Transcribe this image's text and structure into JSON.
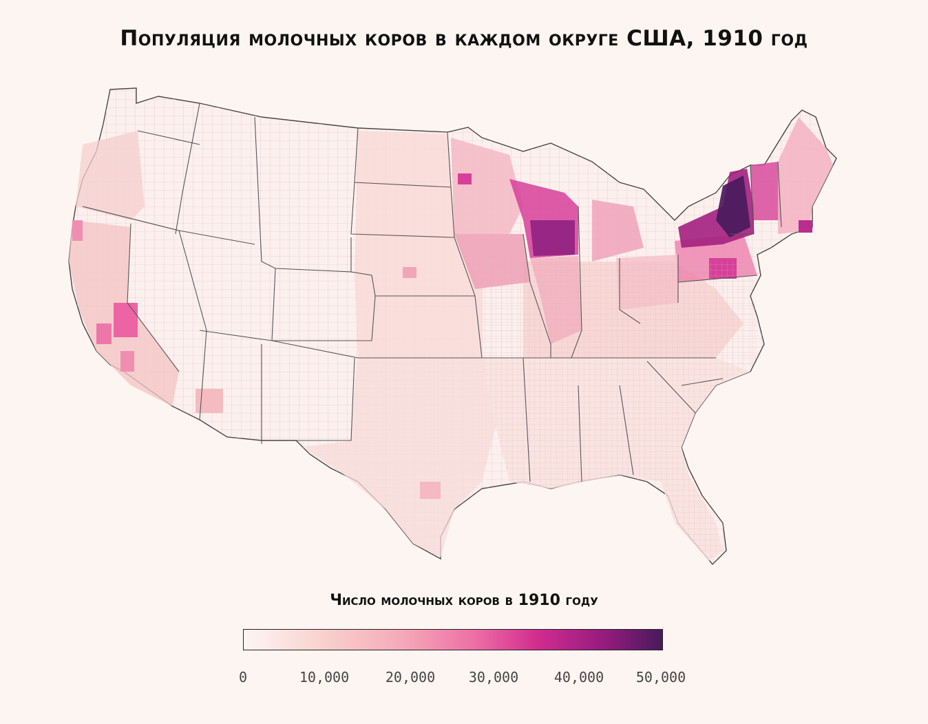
{
  "title": "Популяция молочных коров в каждом округе США, 1910 год",
  "legend": {
    "title": "Число молочных коров в 1910 году",
    "ticks": [
      "0",
      "10,000",
      "20,000",
      "30,000",
      "40,000",
      "50,000"
    ],
    "min": 0,
    "max": 50000,
    "colors": [
      "#fdf6f4",
      "#f9d3d0",
      "#f5a9b8",
      "#ee6fa6",
      "#d12d8f",
      "#9a1c80",
      "#4a1a5c"
    ]
  },
  "colors": {
    "background": "#fdf5f2",
    "border": "#555555",
    "text": "#111111"
  },
  "map_regions": [
    {
      "name": "new-york",
      "level": 46000
    },
    {
      "name": "wisconsin",
      "level": 36000
    },
    {
      "name": "iowa",
      "level": 20000
    },
    {
      "name": "minnesota",
      "level": 16000
    },
    {
      "name": "illinois",
      "level": 14000
    },
    {
      "name": "michigan",
      "level": 13000
    },
    {
      "name": "pennsylvania",
      "level": 15000
    },
    {
      "name": "ohio",
      "level": 9000
    },
    {
      "name": "vermont",
      "level": 22000
    },
    {
      "name": "new-england",
      "level": 11000
    },
    {
      "name": "california",
      "level": 9000
    },
    {
      "name": "texas",
      "level": 5000
    },
    {
      "name": "south",
      "level": 3500
    },
    {
      "name": "plains",
      "level": 6000
    },
    {
      "name": "west",
      "level": 2000
    }
  ]
}
